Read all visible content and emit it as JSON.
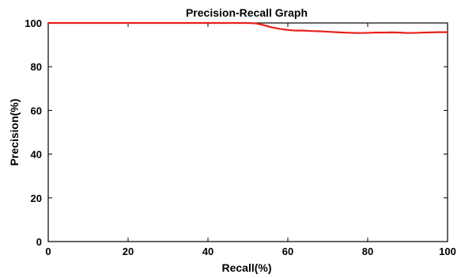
{
  "chart_data": {
    "type": "line",
    "title": "Precision-Recall Graph",
    "xlabel": "Recall(%)",
    "ylabel": "Precision(%)",
    "xlim": [
      0,
      100
    ],
    "ylim": [
      0,
      100
    ],
    "xticks": [
      "0",
      "20",
      "40",
      "60",
      "80",
      "100"
    ],
    "yticks": [
      "0",
      "20",
      "40",
      "60",
      "80",
      "100"
    ],
    "grid": false,
    "legend": "none",
    "series": [
      {
        "color": "#e8201c",
        "x": [
          0,
          10,
          20,
          30,
          40,
          45,
          50,
          52,
          54,
          56,
          58,
          60,
          62,
          64,
          66,
          68,
          70,
          72,
          74,
          76,
          78,
          80,
          82,
          84,
          86,
          88,
          90,
          92,
          94,
          96,
          98,
          100
        ],
        "y": [
          100,
          100,
          100,
          100,
          100,
          100,
          100,
          99.8,
          99.0,
          98.0,
          97.3,
          96.8,
          96.5,
          96.5,
          96.3,
          96.2,
          96.0,
          95.8,
          95.6,
          95.5,
          95.4,
          95.5,
          95.6,
          95.6,
          95.7,
          95.6,
          95.4,
          95.5,
          95.6,
          95.7,
          95.8,
          95.8
        ]
      }
    ]
  }
}
